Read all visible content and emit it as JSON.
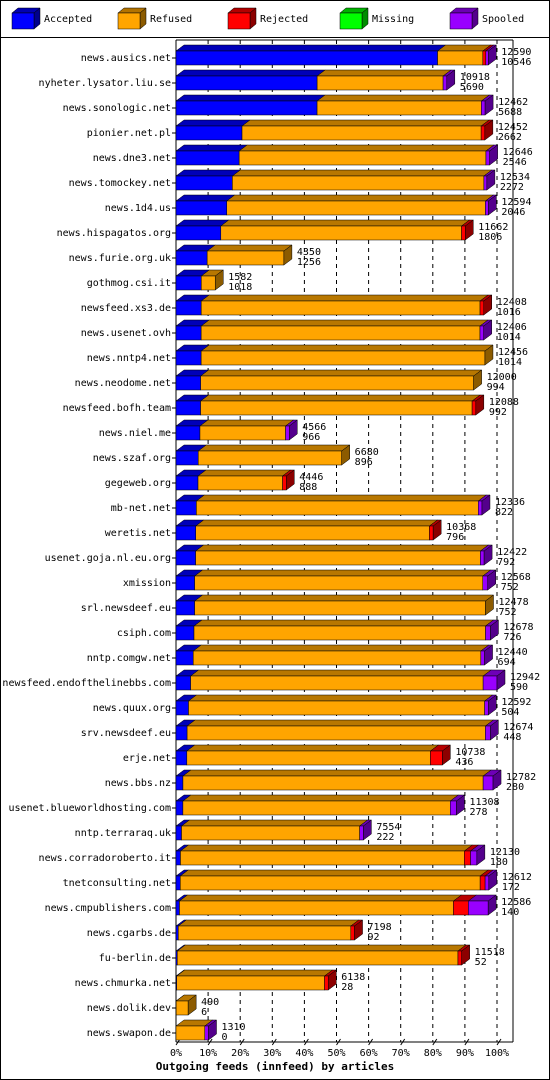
{
  "chart_data": {
    "type": "bar",
    "orientation": "horizontal",
    "stacked": true,
    "legend": "top",
    "grid": true,
    "x_label": "Outgoing feeds (innfeed) by articles",
    "categories": [
      "news.ausics.net",
      "nyheter.lysator.liu.se",
      "news.sonologic.net",
      "pionier.net.pl",
      "news.dne3.net",
      "news.tomockey.net",
      "news.1d4.us",
      "news.hispagatos.org",
      "news.furie.org.uk",
      "gothmog.csi.it",
      "newsfeed.xs3.de",
      "news.usenet.ovh",
      "news.nntp4.net",
      "news.neodome.net",
      "newsfeed.bofh.team",
      "news.niel.me",
      "news.szaf.org",
      "gegeweb.org",
      "mb-net.net",
      "weretis.net",
      "usenet.goja.nl.eu.org",
      "xmission",
      "srl.newsdeef.eu",
      "csiph.com",
      "nntp.comgw.net",
      "newsfeed.endofthelinebbs.com",
      "news.quux.org",
      "srv.newsdeef.eu",
      "erje.net",
      "news.bbs.nz",
      "usenet.blueworldhosting.com",
      "nntp.terraraq.uk",
      "news.corradoroberto.it",
      "tnetconsulting.net",
      "news.cmpublishers.com",
      "news.cgarbs.de",
      "fu-berlin.de",
      "news.chmurka.net",
      "news.dolik.dev",
      "news.swapon.de"
    ],
    "totals": [
      12590,
      10918,
      12462,
      12452,
      12646,
      12534,
      12594,
      11662,
      4350,
      1582,
      12408,
      12406,
      12456,
      12000,
      12088,
      4566,
      6680,
      4446,
      12336,
      10368,
      12422,
      12568,
      12478,
      12678,
      12440,
      12942,
      12592,
      12674,
      10738,
      12782,
      11308,
      7554,
      12130,
      12612,
      12586,
      7198,
      11518,
      6138,
      490,
      1310
    ],
    "series": [
      {
        "name": "Accepted",
        "color": "#0000ff",
        "values": [
          10546,
          5690,
          5688,
          2662,
          2546,
          2272,
          2046,
          1806,
          1256,
          1018,
          1016,
          1014,
          1014,
          994,
          992,
          966,
          896,
          888,
          822,
          796,
          792,
          752,
          752,
          726,
          694,
          590,
          504,
          448,
          436,
          280,
          278,
          222,
          180,
          172,
          140,
          92,
          52,
          28,
          6,
          0
        ]
      },
      {
        "name": "Refused",
        "color": "#ffa500",
        "values": [
          1824,
          5078,
          6624,
          9640,
          9950,
          10142,
          10428,
          9706,
          3094,
          564,
          11242,
          11242,
          11442,
          11006,
          10946,
          3450,
          5784,
          3408,
          11364,
          9422,
          11480,
          11616,
          11726,
          11752,
          11596,
          11792,
          11938,
          12026,
          9822,
          12102,
          10780,
          7182,
          11445,
          12090,
          11046,
          6956,
          11316,
          5960,
          484,
          1160
        ]
      },
      {
        "name": "Rejected",
        "color": "#ff0000",
        "values": [
          120,
          0,
          0,
          150,
          0,
          0,
          0,
          150,
          0,
          0,
          150,
          0,
          0,
          0,
          150,
          0,
          0,
          150,
          0,
          150,
          0,
          0,
          0,
          0,
          0,
          0,
          0,
          0,
          480,
          0,
          0,
          0,
          250,
          200,
          600,
          150,
          150,
          150,
          0,
          0
        ]
      },
      {
        "name": "Missing",
        "color": "#00ff00",
        "values": [
          0,
          0,
          0,
          0,
          0,
          0,
          0,
          0,
          0,
          0,
          0,
          0,
          0,
          0,
          0,
          0,
          0,
          0,
          0,
          0,
          0,
          0,
          0,
          0,
          0,
          0,
          0,
          0,
          0,
          0,
          0,
          0,
          0,
          0,
          0,
          0,
          0,
          0,
          0,
          0
        ]
      },
      {
        "name": "Spooled",
        "color": "#9900ff",
        "values": [
          100,
          150,
          150,
          0,
          150,
          120,
          120,
          0,
          0,
          0,
          0,
          150,
          0,
          0,
          0,
          150,
          0,
          0,
          150,
          0,
          150,
          200,
          0,
          200,
          150,
          560,
          150,
          200,
          0,
          400,
          250,
          150,
          255,
          150,
          800,
          0,
          0,
          0,
          0,
          150
        ]
      }
    ],
    "xlim": [
      0,
      12942
    ],
    "xticks": [
      {
        "value": 0,
        "label": "0%"
      },
      {
        "value": 1294.2,
        "label": "10%"
      },
      {
        "value": 2588.4,
        "label": "20%"
      },
      {
        "value": 3882.6,
        "label": "30%"
      },
      {
        "value": 5176.8,
        "label": "40%"
      },
      {
        "value": 6471,
        "label": "50%"
      },
      {
        "value": 7765.2,
        "label": "60%"
      },
      {
        "value": 9059.4,
        "label": "70%"
      },
      {
        "value": 10353.6,
        "label": "80%"
      },
      {
        "value": 11647.8,
        "label": "90%"
      },
      {
        "value": 12942,
        "label": "100%"
      }
    ]
  }
}
